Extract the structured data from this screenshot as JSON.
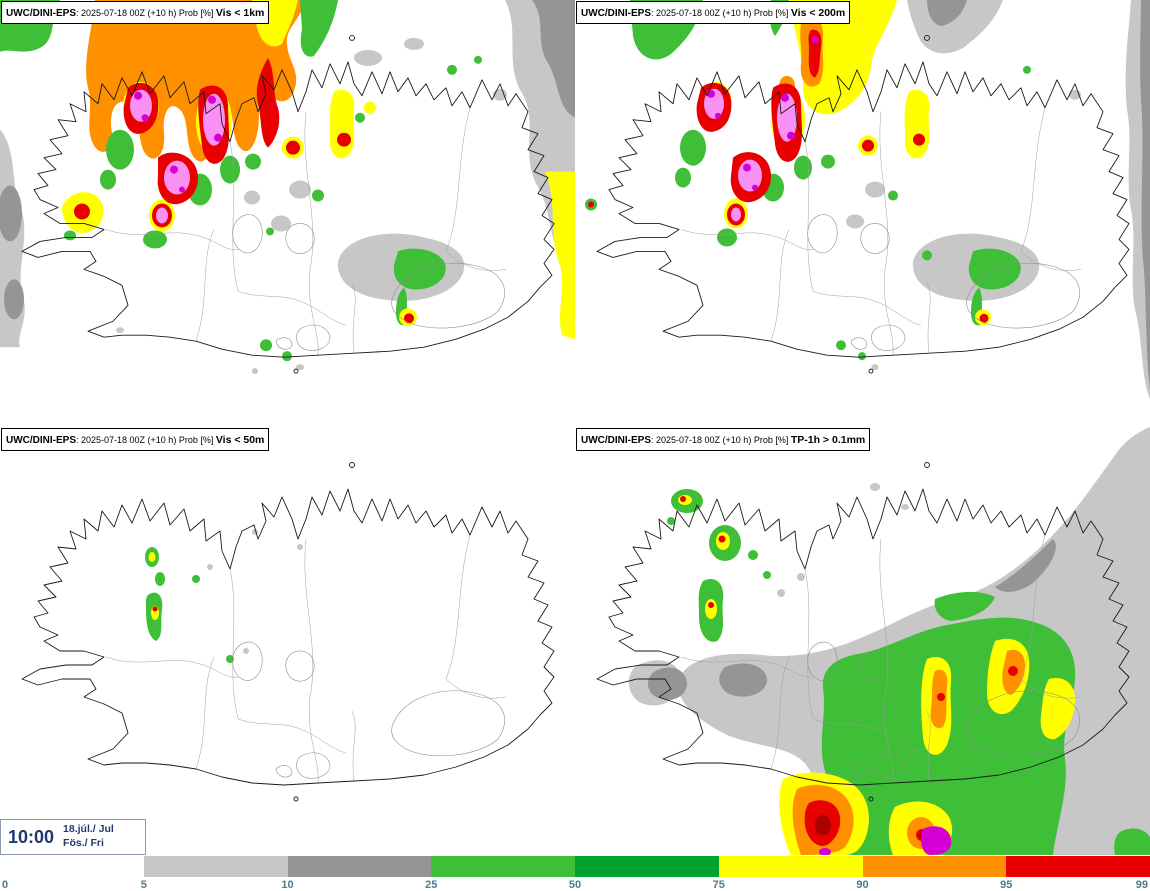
{
  "panels": [
    {
      "model": "UWC/DINI-EPS",
      "meta": ": 2025-07-18 00Z (+10 h) Prob [%] ",
      "param": "Vis < 1km"
    },
    {
      "model": "UWC/DINI-EPS",
      "meta": ": 2025-07-18 00Z (+10 h) Prob [%] ",
      "param": "Vis < 200m"
    },
    {
      "model": "UWC/DINI-EPS",
      "meta": ": 2025-07-18 00Z (+10 h) Prob [%] ",
      "param": "Vis < 50m"
    },
    {
      "model": "UWC/DINI-EPS",
      "meta": ": 2025-07-18 00Z (+10 h) Prob [%] ",
      "param": "TP-1h > 0.1mm"
    }
  ],
  "time_box": {
    "time": "10:00",
    "date": "18.júl./ Jul",
    "day": "Fös./ Fri"
  },
  "colorbar": {
    "tick_labels": [
      "0",
      "5",
      "10",
      "25",
      "50",
      "75",
      "90",
      "95",
      "99"
    ],
    "segment_color_keys": [
      "white",
      "gray_light",
      "gray_dark",
      "green_light",
      "green",
      "yellow",
      "orange",
      "red"
    ]
  },
  "palette": {
    "white": "#ffffff",
    "gray_light": "#c7c7c7",
    "gray_dark": "#959595",
    "green_light": "#3fbe37",
    "green": "#00a12e",
    "yellow": "#ffff00",
    "orange": "#ff9000",
    "red": "#e80000",
    "red_dark": "#aa0000",
    "pink": "#f891f3",
    "magenta": "#d400d4",
    "navy": "#1d3a70",
    "tick_blue": "#4e7b90"
  }
}
